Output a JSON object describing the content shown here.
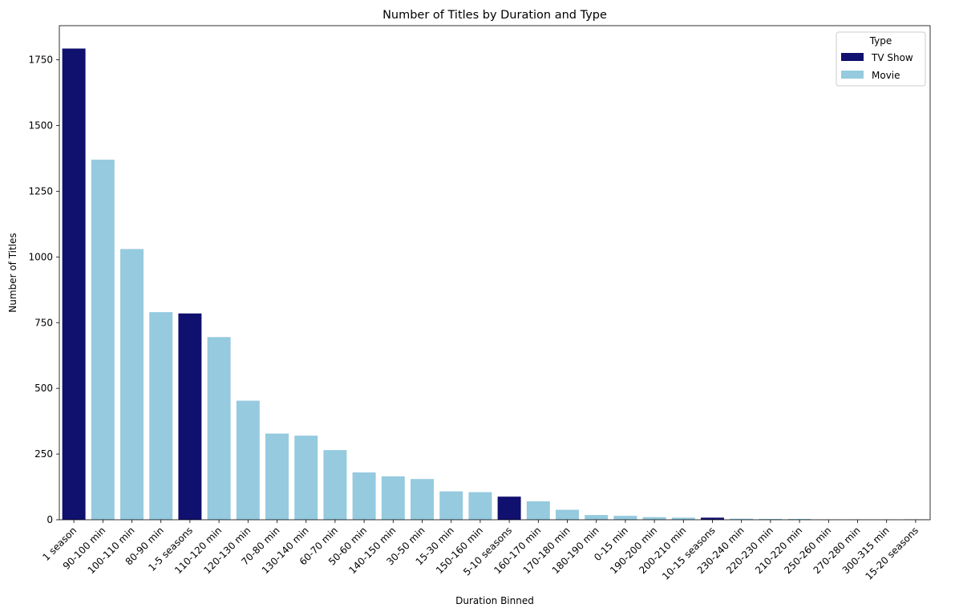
{
  "chart_data": {
    "type": "bar",
    "title": "Number of Titles by Duration and Type",
    "xlabel": "Duration Binned",
    "ylabel": "Number of Titles",
    "ylim": [
      0,
      1880
    ],
    "yticks": [
      0,
      250,
      500,
      750,
      1000,
      1250,
      1500,
      1750
    ],
    "grid": false,
    "legend": {
      "title": "Type",
      "placement": "top-right",
      "entries": [
        {
          "name": "TV Show",
          "color": "#10106f"
        },
        {
          "name": "Movie",
          "color": "#95cadf"
        }
      ]
    },
    "categories": [
      "1 season",
      "90-100 min",
      "100-110 min",
      "80-90 min",
      "1-5 seasons",
      "110-120 min",
      "120-130 min",
      "70-80 min",
      "130-140 min",
      "60-70 min",
      "50-60 min",
      "140-150 min",
      "30-50 min",
      "15-30 min",
      "150-160 min",
      "5-10 seasons",
      "160-170 min",
      "170-180 min",
      "180-190 min",
      "0-15 min",
      "190-200 min",
      "200-210 min",
      "10-15 seasons",
      "230-240 min",
      "220-230 min",
      "210-220 min",
      "250-260 min",
      "270-280 min",
      "300-315 min",
      "15-20 seasons"
    ],
    "values": [
      1793,
      1370,
      1030,
      790,
      785,
      695,
      453,
      328,
      320,
      265,
      180,
      165,
      155,
      108,
      105,
      88,
      70,
      38,
      18,
      15,
      10,
      8,
      8,
      4,
      3,
      3,
      1,
      1,
      1,
      1
    ],
    "types": [
      "TV Show",
      "Movie",
      "Movie",
      "Movie",
      "TV Show",
      "Movie",
      "Movie",
      "Movie",
      "Movie",
      "Movie",
      "Movie",
      "Movie",
      "Movie",
      "Movie",
      "Movie",
      "TV Show",
      "Movie",
      "Movie",
      "Movie",
      "Movie",
      "Movie",
      "Movie",
      "TV Show",
      "Movie",
      "Movie",
      "Movie",
      "Movie",
      "Movie",
      "Movie",
      "TV Show"
    ]
  }
}
